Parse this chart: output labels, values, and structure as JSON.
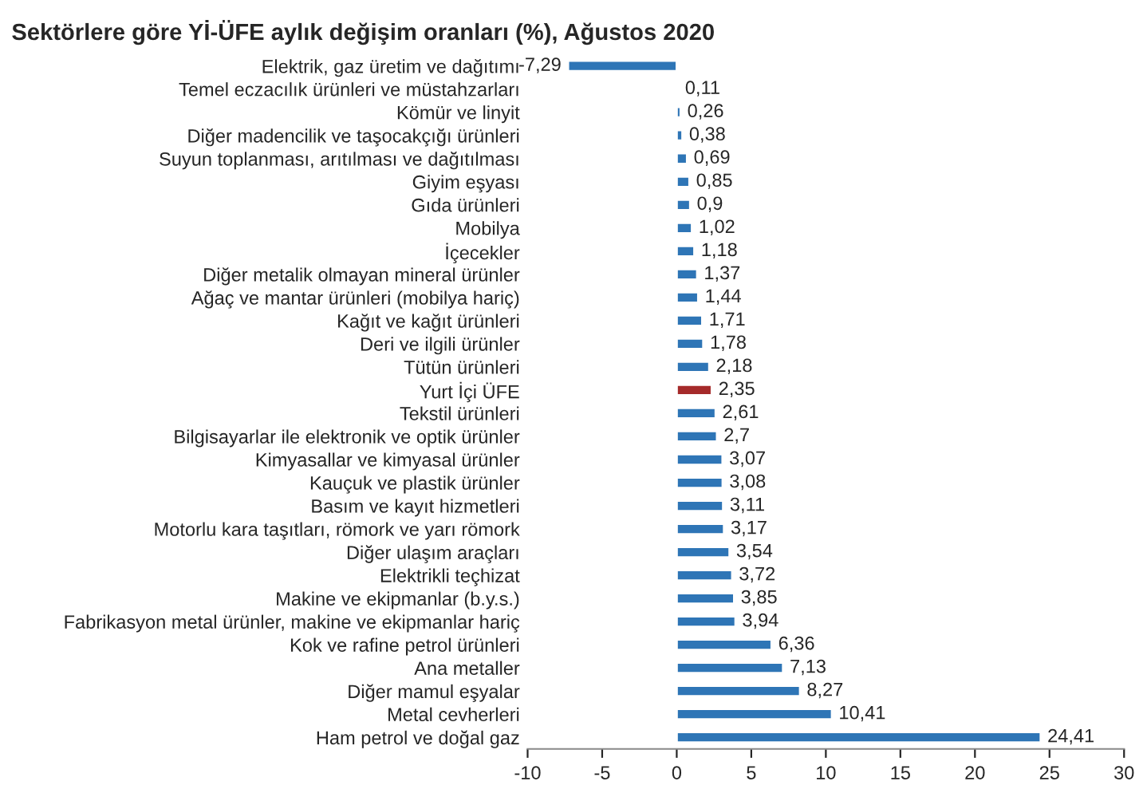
{
  "chart_data": {
    "type": "bar",
    "orientation": "horizontal",
    "title": "Sektörlere göre Yİ-ÜFE aylık değişim oranları (%), Ağustos 2020",
    "categories": [
      "Elektrik, gaz üretim ve dağıtımı",
      "Temel eczacılık ürünleri ve müstahzarları",
      "Kömür ve linyit",
      "Diğer madencilik ve taşocakçığı ürünleri",
      "Suyun toplanması, arıtılması ve dağıtılması",
      "Giyim eşyası",
      "Gıda ürünleri",
      "Mobilya",
      "İçecekler",
      "Diğer metalik olmayan mineral ürünler",
      "Ağaç ve mantar ürünleri (mobilya hariç)",
      "Kağıt ve kağıt ürünleri",
      "Deri ve ilgili ürünler",
      "Tütün ürünleri",
      "Yurt İçi ÜFE",
      "Tekstil ürünleri",
      "Bilgisayarlar ile elektronik ve optik ürünler",
      "Kimyasallar ve kimyasal ürünler",
      "Kauçuk ve plastik ürünler",
      "Basım ve kayıt hizmetleri",
      "Motorlu kara taşıtları, römork ve yarı römork",
      "Diğer ulaşım araçları",
      "Elektrikli teçhizat",
      "Makine ve ekipmanlar (b.y.s.)",
      "Fabrikasyon metal ürünler, makine ve ekipmanlar hariç",
      "Kok ve rafine petrol ürünleri",
      "Ana metaller",
      "Diğer mamul eşyalar",
      "Metal cevherleri",
      "Ham petrol ve doğal gaz"
    ],
    "values": [
      -7.29,
      0.11,
      0.26,
      0.38,
      0.69,
      0.85,
      0.9,
      1.02,
      1.18,
      1.37,
      1.44,
      1.71,
      1.78,
      2.18,
      2.35,
      2.61,
      2.7,
      3.07,
      3.08,
      3.11,
      3.17,
      3.54,
      3.72,
      3.85,
      3.94,
      6.36,
      7.13,
      8.27,
      10.41,
      24.41
    ],
    "value_labels": [
      "-7,29",
      "0,11",
      "0,26",
      "0,38",
      "0,69",
      "0,85",
      "0,9",
      "1,02",
      "1,18",
      "1,37",
      "1,44",
      "1,71",
      "1,78",
      "2,18",
      "2,35",
      "2,61",
      "2,7",
      "3,07",
      "3,08",
      "3,11",
      "3,17",
      "3,54",
      "3,72",
      "3,85",
      "3,94",
      "6,36",
      "7,13",
      "8,27",
      "10,41",
      "24,41"
    ],
    "colors": [
      "#2e75b6",
      "#2e75b6",
      "#2e75b6",
      "#2e75b6",
      "#2e75b6",
      "#2e75b6",
      "#2e75b6",
      "#2e75b6",
      "#2e75b6",
      "#2e75b6",
      "#2e75b6",
      "#2e75b6",
      "#2e75b6",
      "#2e75b6",
      "#a52a2a",
      "#2e75b6",
      "#2e75b6",
      "#2e75b6",
      "#2e75b6",
      "#2e75b6",
      "#2e75b6",
      "#2e75b6",
      "#2e75b6",
      "#2e75b6",
      "#2e75b6",
      "#2e75b6",
      "#2e75b6",
      "#2e75b6",
      "#2e75b6",
      "#2e75b6"
    ],
    "xlim": [
      -10,
      30
    ],
    "xticks": [
      -10,
      -5,
      0,
      5,
      10,
      15,
      20,
      25,
      30
    ],
    "grid": false
  }
}
